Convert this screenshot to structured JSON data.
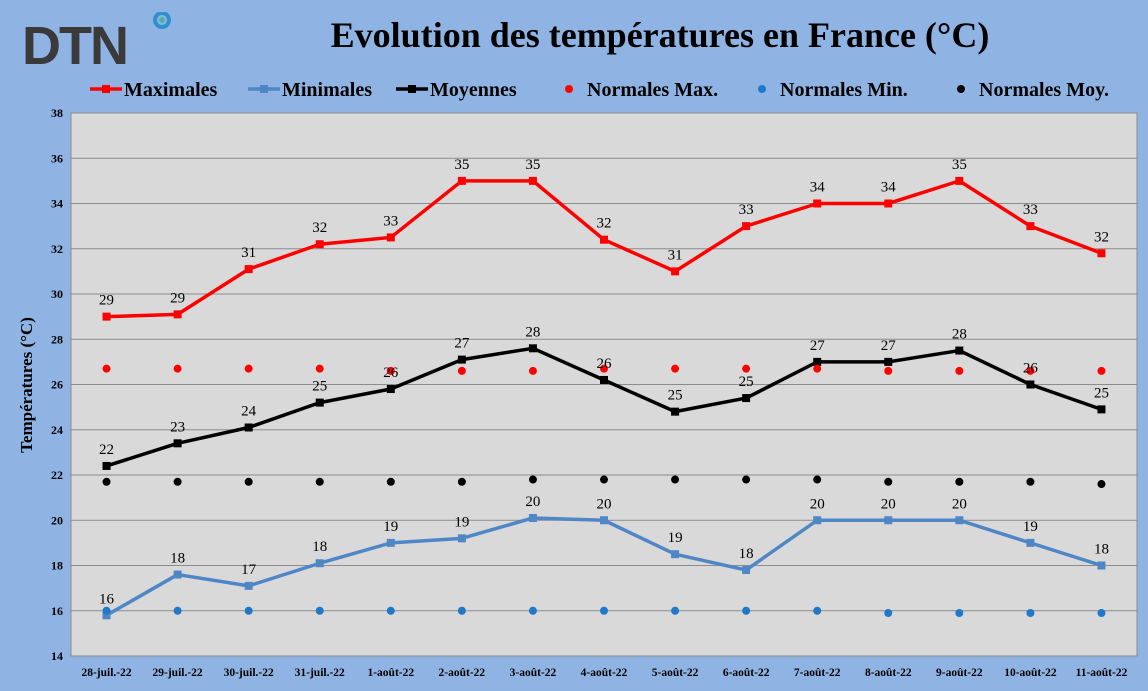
{
  "brand": {
    "logo_text": "DTN",
    "accent_color": "#4cb5a0",
    "ring_color": "#2f8fcf",
    "text_color": "#3a3a3a"
  },
  "chart_data": {
    "type": "line",
    "title": "Evolution des températures en France (°C)",
    "xlabel": "",
    "ylabel": "Températures (°C)",
    "ylim": [
      14,
      38
    ],
    "yticks": [
      14,
      16,
      18,
      20,
      22,
      24,
      26,
      28,
      30,
      32,
      34,
      36,
      38
    ],
    "grid": true,
    "legend_position": "top",
    "categories": [
      "28-juil.-22",
      "29-juil.-22",
      "30-juil.-22",
      "31-juil.-22",
      "1-août-22",
      "2-août-22",
      "3-août-22",
      "4-août-22",
      "5-août-22",
      "6-août-22",
      "7-août-22",
      "8-août-22",
      "9-août-22",
      "10-août-22",
      "11-août-22"
    ],
    "series": [
      {
        "name": "Maximales",
        "kind": "line",
        "color": "#ff0000",
        "values": [
          29.0,
          29.1,
          31.1,
          32.2,
          32.5,
          35.0,
          35.0,
          32.4,
          31.0,
          33.0,
          34.0,
          34.0,
          35.0,
          33.0,
          31.8
        ],
        "labels": [
          "29",
          "29",
          "31",
          "32",
          "33",
          "35",
          "35",
          "32",
          "31",
          "33",
          "34",
          "34",
          "35",
          "33",
          "32"
        ]
      },
      {
        "name": "Minimales",
        "kind": "line",
        "color": "#4f87c6",
        "values": [
          15.8,
          17.6,
          17.1,
          18.1,
          19.0,
          19.2,
          20.1,
          20.0,
          18.5,
          17.8,
          20.0,
          20.0,
          20.0,
          19.0,
          18.0
        ],
        "labels": [
          "16",
          "18",
          "17",
          "18",
          "19",
          "19",
          "20",
          "20",
          "19",
          "18",
          "20",
          "20",
          "20",
          "19",
          "18"
        ]
      },
      {
        "name": "Moyennes",
        "kind": "line",
        "color": "#000000",
        "values": [
          22.4,
          23.4,
          24.1,
          25.2,
          25.8,
          27.1,
          27.6,
          26.2,
          24.8,
          25.4,
          27.0,
          27.0,
          27.5,
          26.0,
          24.9
        ],
        "labels": [
          "22",
          "23",
          "24",
          "25",
          "26",
          "27",
          "28",
          "26",
          "25",
          "25",
          "27",
          "27",
          "28",
          "26",
          "25"
        ]
      },
      {
        "name": "Normales Max.",
        "kind": "points",
        "color": "#ff0000",
        "values": [
          26.7,
          26.7,
          26.7,
          26.7,
          26.6,
          26.6,
          26.6,
          26.7,
          26.7,
          26.7,
          26.7,
          26.6,
          26.6,
          26.6,
          26.6
        ]
      },
      {
        "name": "Normales Min.",
        "kind": "points",
        "color": "#1f78c8",
        "values": [
          16.0,
          16.0,
          16.0,
          16.0,
          16.0,
          16.0,
          16.0,
          16.0,
          16.0,
          16.0,
          16.0,
          15.9,
          15.9,
          15.9,
          15.9
        ]
      },
      {
        "name": "Normales Moy.",
        "kind": "points",
        "color": "#000000",
        "values": [
          21.7,
          21.7,
          21.7,
          21.7,
          21.7,
          21.7,
          21.8,
          21.8,
          21.8,
          21.8,
          21.8,
          21.7,
          21.7,
          21.7,
          21.6
        ]
      }
    ]
  }
}
